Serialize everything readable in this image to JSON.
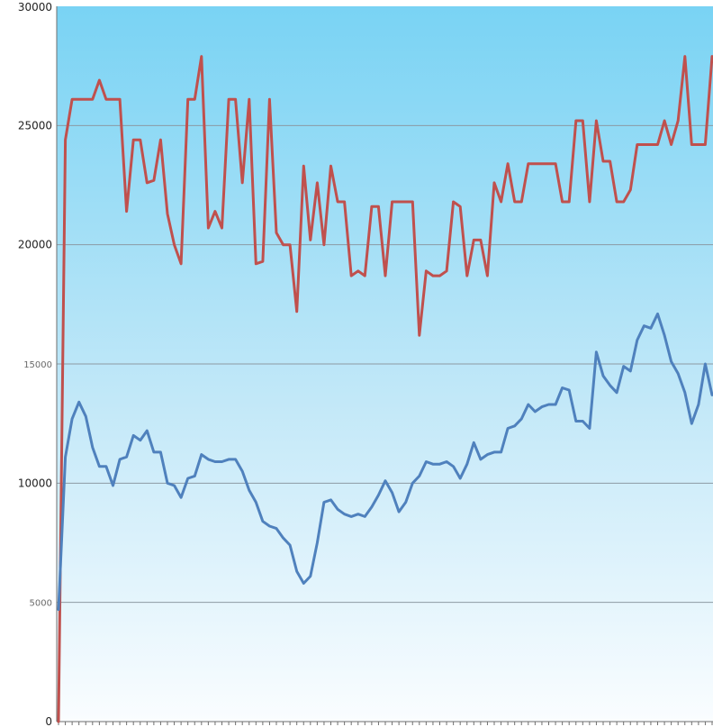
{
  "chart_data": {
    "type": "line",
    "title": "",
    "xlabel": "",
    "ylabel": "",
    "ylim": [
      0,
      30000
    ],
    "grid": true,
    "y_ticks": [
      {
        "value": 0,
        "label": "0"
      },
      {
        "value": 5000,
        "label": "5000"
      },
      {
        "value": 10000,
        "label": "10000"
      },
      {
        "value": 15000,
        "label": "15000"
      },
      {
        "value": 20000,
        "label": "20000"
      },
      {
        "value": 25000,
        "label": "25000"
      },
      {
        "value": 30000,
        "label": "30000"
      }
    ],
    "series": [
      {
        "color": "#c0504d",
        "values": [
          0,
          24400,
          26100,
          26100,
          26100,
          26100,
          26900,
          26100,
          26100,
          26100,
          21400,
          24400,
          24400,
          22600,
          22700,
          24400,
          21300,
          20000,
          19200,
          26100,
          26100,
          27900,
          20700,
          21400,
          20700,
          26100,
          26100,
          22600,
          26100,
          19200,
          19300,
          26100,
          20500,
          20000,
          20000,
          17200,
          23300,
          20200,
          22600,
          20000,
          23300,
          21800,
          21800,
          18700,
          18900,
          18700,
          21600,
          21600,
          18700,
          21800,
          21800,
          21800,
          21800,
          16200,
          18900,
          18700,
          18700,
          18900,
          21800,
          21600,
          18700,
          20200,
          20200,
          18700,
          22600,
          21800,
          23400,
          21800,
          21800,
          23400,
          23400,
          23400,
          23400,
          23400,
          21800,
          21800,
          25200,
          25200,
          21800,
          25200,
          23500,
          23500,
          21800,
          21800,
          22300,
          24200,
          24200,
          24200,
          24200,
          25200,
          24200,
          25200,
          27900,
          24200,
          24200,
          24200,
          27900
        ]
      },
      {
        "color": "#4f81bd",
        "values": [
          4700,
          11100,
          12700,
          13400,
          12800,
          11500,
          10700,
          10700,
          9900,
          11000,
          11100,
          12000,
          11800,
          12200,
          11300,
          11300,
          10000,
          9900,
          9400,
          10200,
          10300,
          11200,
          11000,
          10900,
          10900,
          11000,
          11000,
          10500,
          9700,
          9200,
          8400,
          8200,
          8100,
          7700,
          7400,
          6300,
          5800,
          6100,
          7500,
          9200,
          9300,
          8900,
          8700,
          8600,
          8700,
          8600,
          9000,
          9500,
          10100,
          9600,
          8800,
          9200,
          10000,
          10300,
          10900,
          10800,
          10800,
          10900,
          10700,
          10200,
          10800,
          11700,
          11000,
          11200,
          11300,
          11300,
          12300,
          12400,
          12700,
          13300,
          13000,
          13200,
          13300,
          13300,
          14000,
          13900,
          12600,
          12600,
          12300,
          15500,
          14500,
          14100,
          13800,
          14900,
          14700,
          16000,
          16600,
          16500,
          17100,
          16200,
          15100,
          14600,
          13800,
          12500,
          13300,
          15000,
          13700
        ]
      }
    ]
  }
}
